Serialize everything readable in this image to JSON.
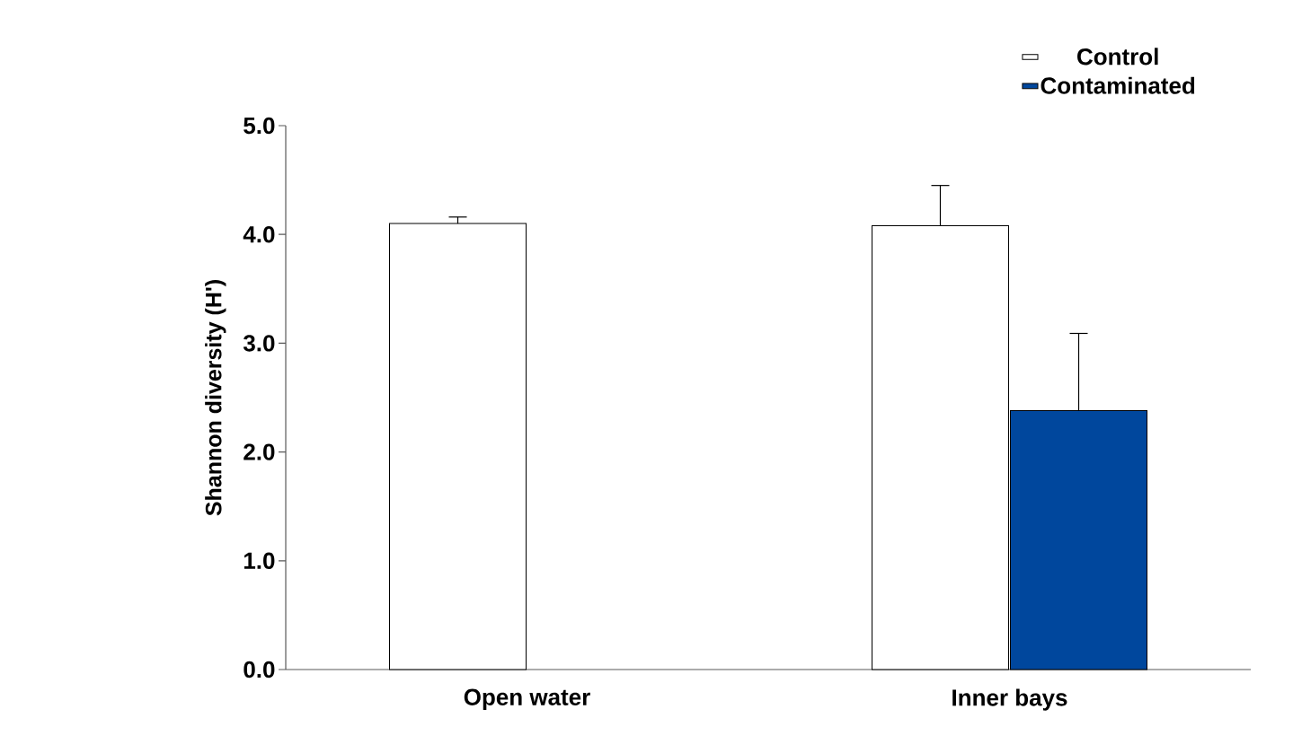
{
  "chart_data": {
    "type": "bar",
    "ylabel": "Shannon diversity (H')",
    "categories": [
      "Open water",
      "Inner bays"
    ],
    "series": [
      {
        "name": "Control",
        "color": "#ffffff",
        "values": [
          4.1,
          4.08
        ],
        "errors": [
          [
            4.1,
            4.16
          ],
          [
            4.08,
            4.45
          ]
        ]
      },
      {
        "name": "Contaminated",
        "color": "#00479d",
        "values": [
          null,
          2.38
        ],
        "errors": [
          null,
          [
            2.38,
            3.09
          ]
        ]
      }
    ],
    "ylim": [
      0,
      5
    ],
    "yticks": [
      {
        "value": 0,
        "label": "0.0"
      },
      {
        "value": 1,
        "label": "1.0"
      },
      {
        "value": 2,
        "label": "2.0"
      },
      {
        "value": 3,
        "label": "3.0"
      },
      {
        "value": 4,
        "label": "4.0"
      },
      {
        "value": 5,
        "label": "5.0"
      }
    ],
    "legend": "top right"
  }
}
